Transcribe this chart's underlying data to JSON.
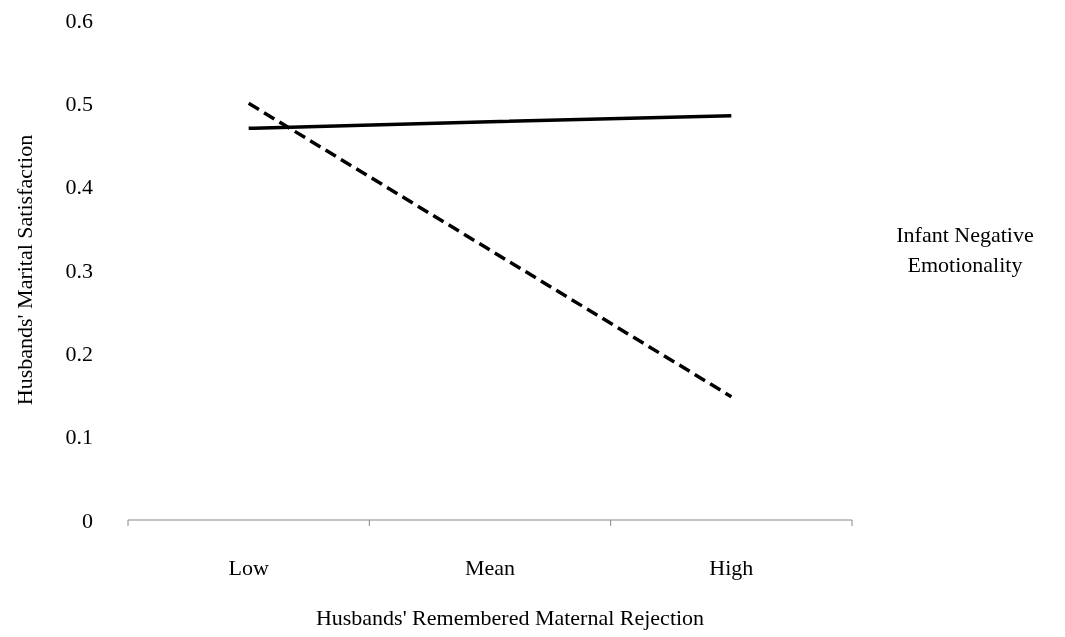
{
  "chart_data": {
    "type": "line",
    "xlabel": "Husbands' Remembered  Maternal Rejection",
    "ylabel": "Husbands' Marital Satisfaction",
    "categories": [
      "Low",
      "Mean",
      "High"
    ],
    "series": [
      {
        "color": "#000000",
        "values": [
          0.47,
          0.478,
          0.485
        ],
        "line_style": "solid"
      },
      {
        "color": "#000000",
        "values": [
          0.5,
          0.324,
          0.148
        ],
        "line_style": "dashed"
      }
    ],
    "ylim": [
      0,
      0.6
    ],
    "yticks": [
      0,
      0.1,
      0.2,
      0.3,
      0.4,
      0.5,
      0.6
    ],
    "grid": false,
    "annotations": [
      "Infant Negative Emotionality"
    ]
  }
}
